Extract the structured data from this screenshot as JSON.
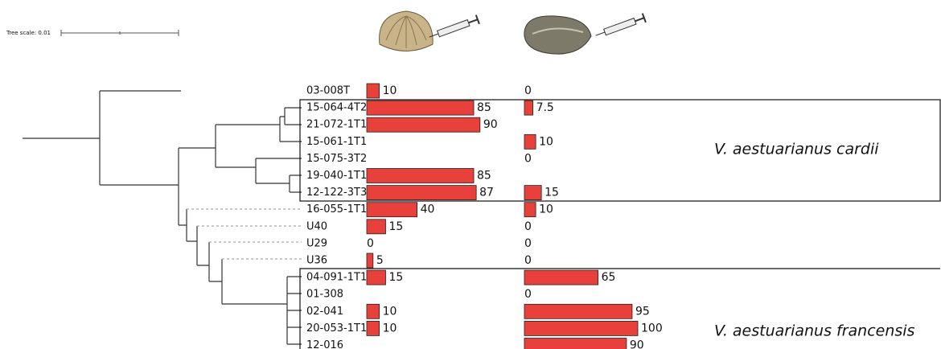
{
  "tree_scale": "Tree scale: 0.01",
  "chart_data": {
    "type": "bar",
    "orientation": "horizontal",
    "categories": [
      "03-008T",
      "15-064-4T2",
      "21-072-1T1",
      "15-061-1T1",
      "15-075-3T2",
      "19-040-1T1",
      "12-122-3T3",
      "16-055-1T1",
      "U40",
      "U29",
      "U36",
      "04-091-1T1",
      "01-308",
      "02-041",
      "20-053-1T1",
      "12-016"
    ],
    "series": [
      {
        "color": "#e8403a",
        "values": [
          10,
          85,
          90,
          null,
          null,
          85,
          87,
          40,
          15,
          0,
          5,
          15,
          null,
          10,
          10,
          null
        ]
      },
      {
        "color": "#e8403a",
        "values": [
          0,
          7.5,
          null,
          10,
          0,
          null,
          15,
          10,
          0,
          0,
          0,
          65,
          0,
          95,
          100,
          90
        ]
      }
    ],
    "annotations": [
      "V. aestuarianus cardii",
      "V. aestuarianus francensis"
    ]
  }
}
